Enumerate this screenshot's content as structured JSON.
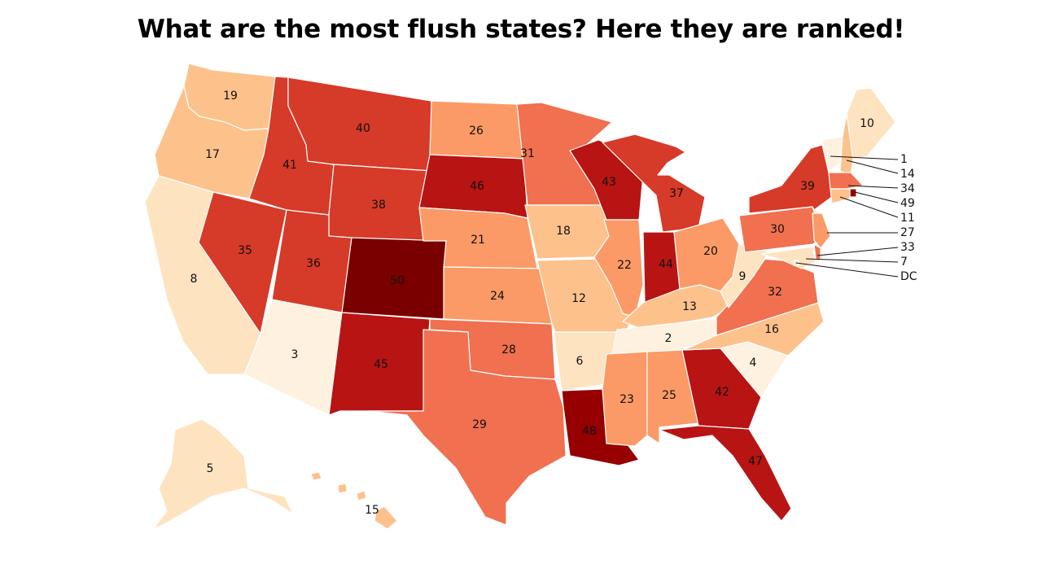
{
  "title": "What are the most flush states? Here they are ranked!",
  "colors": {
    "r1-4": "#fff1df",
    "r5-10": "#fde3c0",
    "r11-19": "#fdc18c",
    "r20-27": "#fb9a66",
    "r28-34": "#f07050",
    "r35-41": "#d63a28",
    "r42-47": "#b81414",
    "r48-49": "#960000",
    "r50": "#7a0000"
  },
  "states": [
    {
      "id": "WA",
      "rank": "19"
    },
    {
      "id": "OR",
      "rank": "17"
    },
    {
      "id": "CA",
      "rank": "8"
    },
    {
      "id": "NV",
      "rank": "35"
    },
    {
      "id": "ID",
      "rank": "41"
    },
    {
      "id": "MT",
      "rank": "40"
    },
    {
      "id": "WY",
      "rank": "38"
    },
    {
      "id": "UT",
      "rank": "36"
    },
    {
      "id": "AZ",
      "rank": "3"
    },
    {
      "id": "CO",
      "rank": "50"
    },
    {
      "id": "NM",
      "rank": "45"
    },
    {
      "id": "ND",
      "rank": "26"
    },
    {
      "id": "SD",
      "rank": "46"
    },
    {
      "id": "NE",
      "rank": "21"
    },
    {
      "id": "KS",
      "rank": "24"
    },
    {
      "id": "OK",
      "rank": "28"
    },
    {
      "id": "TX",
      "rank": "29"
    },
    {
      "id": "MN",
      "rank": "31"
    },
    {
      "id": "IA",
      "rank": "18"
    },
    {
      "id": "MO",
      "rank": "12"
    },
    {
      "id": "AR",
      "rank": "6"
    },
    {
      "id": "LA",
      "rank": "48"
    },
    {
      "id": "WI",
      "rank": "43"
    },
    {
      "id": "IL",
      "rank": "22"
    },
    {
      "id": "MI",
      "rank": "37"
    },
    {
      "id": "IN",
      "rank": "44"
    },
    {
      "id": "OH",
      "rank": "20"
    },
    {
      "id": "KY",
      "rank": "13"
    },
    {
      "id": "TN",
      "rank": "2"
    },
    {
      "id": "MS",
      "rank": "23"
    },
    {
      "id": "AL",
      "rank": "25"
    },
    {
      "id": "GA",
      "rank": "42"
    },
    {
      "id": "FL",
      "rank": "47"
    },
    {
      "id": "SC",
      "rank": "4"
    },
    {
      "id": "NC",
      "rank": "16"
    },
    {
      "id": "VA",
      "rank": "32"
    },
    {
      "id": "WV",
      "rank": "9"
    },
    {
      "id": "PA",
      "rank": "30"
    },
    {
      "id": "NY",
      "rank": "39"
    },
    {
      "id": "ME",
      "rank": "10"
    },
    {
      "id": "AK",
      "rank": "5"
    },
    {
      "id": "HI",
      "rank": "15"
    },
    {
      "id": "VT",
      "rank": "1"
    },
    {
      "id": "NH",
      "rank": "14"
    },
    {
      "id": "MA",
      "rank": "34"
    },
    {
      "id": "RI",
      "rank": "49"
    },
    {
      "id": "CT",
      "rank": "11"
    },
    {
      "id": "NJ",
      "rank": "27"
    },
    {
      "id": "DE",
      "rank": "33"
    },
    {
      "id": "MD",
      "rank": "7"
    },
    {
      "id": "DC",
      "rank": "DC"
    }
  ]
}
